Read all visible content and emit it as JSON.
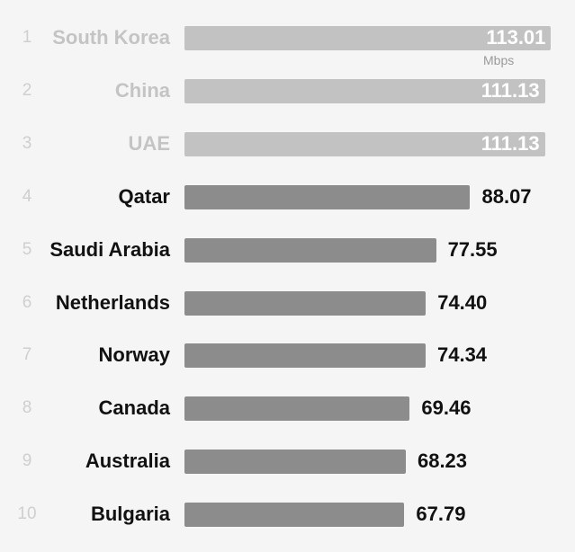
{
  "chart_data": {
    "type": "bar",
    "orientation": "horizontal",
    "unit": "Mbps",
    "ranks": [
      "1",
      "2",
      "3",
      "4",
      "5",
      "6",
      "7",
      "8",
      "9",
      "10"
    ],
    "categories": [
      "South Korea",
      "China",
      "UAE",
      "Qatar",
      "Saudi Arabia",
      "Netherlands",
      "Norway",
      "Canada",
      "Australia",
      "Bulgaria"
    ],
    "values": [
      113.01,
      111.13,
      111.13,
      88.07,
      77.55,
      74.4,
      74.34,
      69.46,
      68.23,
      67.79
    ],
    "value_labels": [
      "113.01",
      "111.13",
      "111.13",
      "88.07",
      "77.55",
      "74.40",
      "74.34",
      "69.46",
      "68.23",
      "67.79"
    ],
    "highlight_count": 3,
    "colors": {
      "top_bar": "#c2c2c2",
      "bar": "#8c8c8c",
      "top_text": "#c4c4c4",
      "text": "#111111",
      "rank": "#cfcfcf"
    }
  }
}
